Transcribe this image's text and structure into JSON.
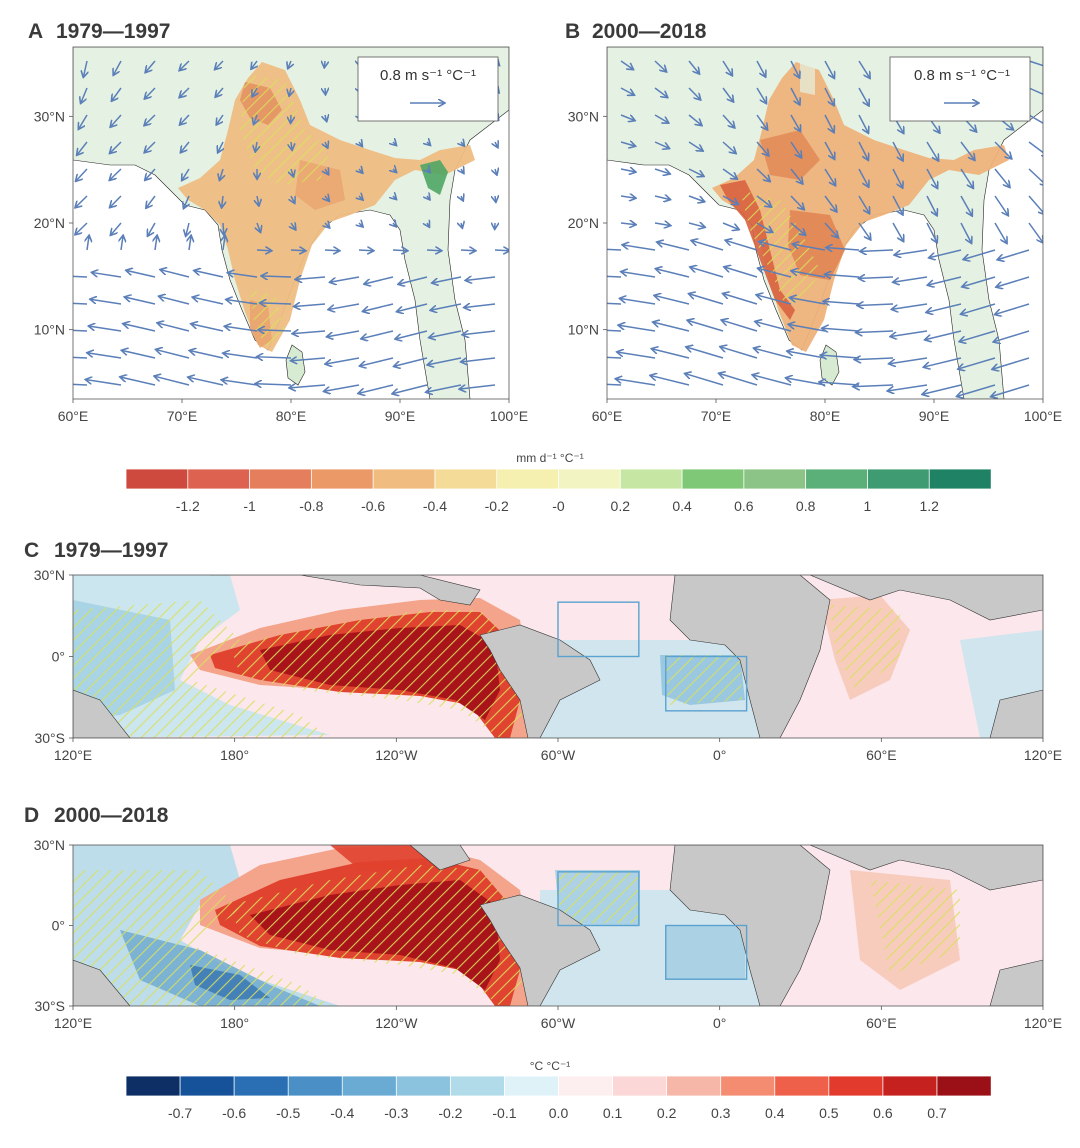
{
  "chart_data": [
    {
      "id": "A",
      "type": "map",
      "label": "A",
      "title": "1979—1997",
      "x_ticks": [
        "60°E",
        "70°E",
        "80°E",
        "90°E",
        "100°E"
      ],
      "y_ticks": [
        "30°N",
        "20°N",
        "10°N"
      ],
      "xlim": [
        60,
        100
      ],
      "ylim": [
        3.5,
        36.5
      ],
      "ref_vector": {
        "magnitude": 0.8,
        "label": "0.8 m s⁻¹ °C⁻¹"
      },
      "hatched": true,
      "colors": {
        "land": "#e5f2e3",
        "vector": "#5b7fb8"
      }
    },
    {
      "id": "B",
      "type": "map",
      "label": "B",
      "title": "2000—2018",
      "x_ticks": [
        "60°E",
        "70°E",
        "80°E",
        "90°E",
        "100°E"
      ],
      "y_ticks": [
        "30°N",
        "20°N",
        "10°N"
      ],
      "xlim": [
        60,
        100
      ],
      "ylim": [
        3.5,
        36.5
      ],
      "ref_vector": {
        "magnitude": 0.8,
        "label": "0.8 m s⁻¹ °C⁻¹"
      },
      "hatched": true,
      "colors": {
        "land": "#e5f2e3",
        "vector": "#5b7fb8"
      }
    },
    {
      "id": "colorbar1",
      "type": "colorbar",
      "unit": "mm d⁻¹ °C⁻¹",
      "tick_labels": [
        "-1.2",
        "-1",
        "-0.8",
        "-0.6",
        "-0.4",
        "-0.2",
        "-0",
        "0.2",
        "0.4",
        "0.6",
        "0.8",
        "1",
        "1.2"
      ],
      "colors": [
        "#cf4a3e",
        "#dd6250",
        "#e57e5c",
        "#eb9a67",
        "#f0bc7f",
        "#f4dc98",
        "#f5efb0",
        "#f2f5c2",
        "#c6e6a4",
        "#7fc878",
        "#8cc386",
        "#5bb07a",
        "#3f9c72",
        "#1f8264"
      ]
    },
    {
      "id": "C",
      "type": "map",
      "label": "C",
      "title": "1979—1997",
      "x_ticks": [
        "120°E",
        "180°",
        "120°W",
        "60°W",
        "0°",
        "60°E",
        "120°E"
      ],
      "y_ticks": [
        "30°N",
        "0°",
        "30°S"
      ],
      "xlim": [
        120,
        480
      ],
      "ylim": [
        -30,
        30
      ],
      "boxes": [
        {
          "lon": [
            300,
            330
          ],
          "lat": [
            0,
            20
          ]
        },
        {
          "lon": [
            340,
            370
          ],
          "lat": [
            -20,
            0
          ]
        }
      ],
      "colors": {
        "land": "#c8c8c8",
        "box": "#5aa2cf"
      }
    },
    {
      "id": "D",
      "type": "map",
      "label": "D",
      "title": "2000—2018",
      "x_ticks": [
        "120°E",
        "180°",
        "120°W",
        "60°W",
        "0°",
        "60°E",
        "120°E"
      ],
      "y_ticks": [
        "30°N",
        "0°",
        "30°S"
      ],
      "xlim": [
        120,
        480
      ],
      "ylim": [
        -30,
        30
      ],
      "boxes": [
        {
          "lon": [
            300,
            330
          ],
          "lat": [
            0,
            20
          ]
        },
        {
          "lon": [
            340,
            370
          ],
          "lat": [
            -20,
            0
          ]
        }
      ],
      "colors": {
        "land": "#c8c8c8",
        "box": "#5aa2cf"
      }
    },
    {
      "id": "colorbar2",
      "type": "colorbar",
      "unit": "°C °C⁻¹",
      "tick_labels": [
        "-0.7",
        "-0.6",
        "-0.5",
        "-0.4",
        "-0.3",
        "-0.2",
        "-0.1",
        "0.0",
        "0.1",
        "0.2",
        "0.3",
        "0.4",
        "0.5",
        "0.6",
        "0.7"
      ],
      "colors": [
        "#0d2f66",
        "#15529a",
        "#2a6fb3",
        "#4a8fc6",
        "#6aabd4",
        "#8bc3de",
        "#b1dbe9",
        "#def2f8",
        "#fdeef0",
        "#fbd7d7",
        "#f7b7a8",
        "#f48c72",
        "#ee6049",
        "#e23a2c",
        "#c5221f",
        "#9a1016"
      ]
    }
  ]
}
